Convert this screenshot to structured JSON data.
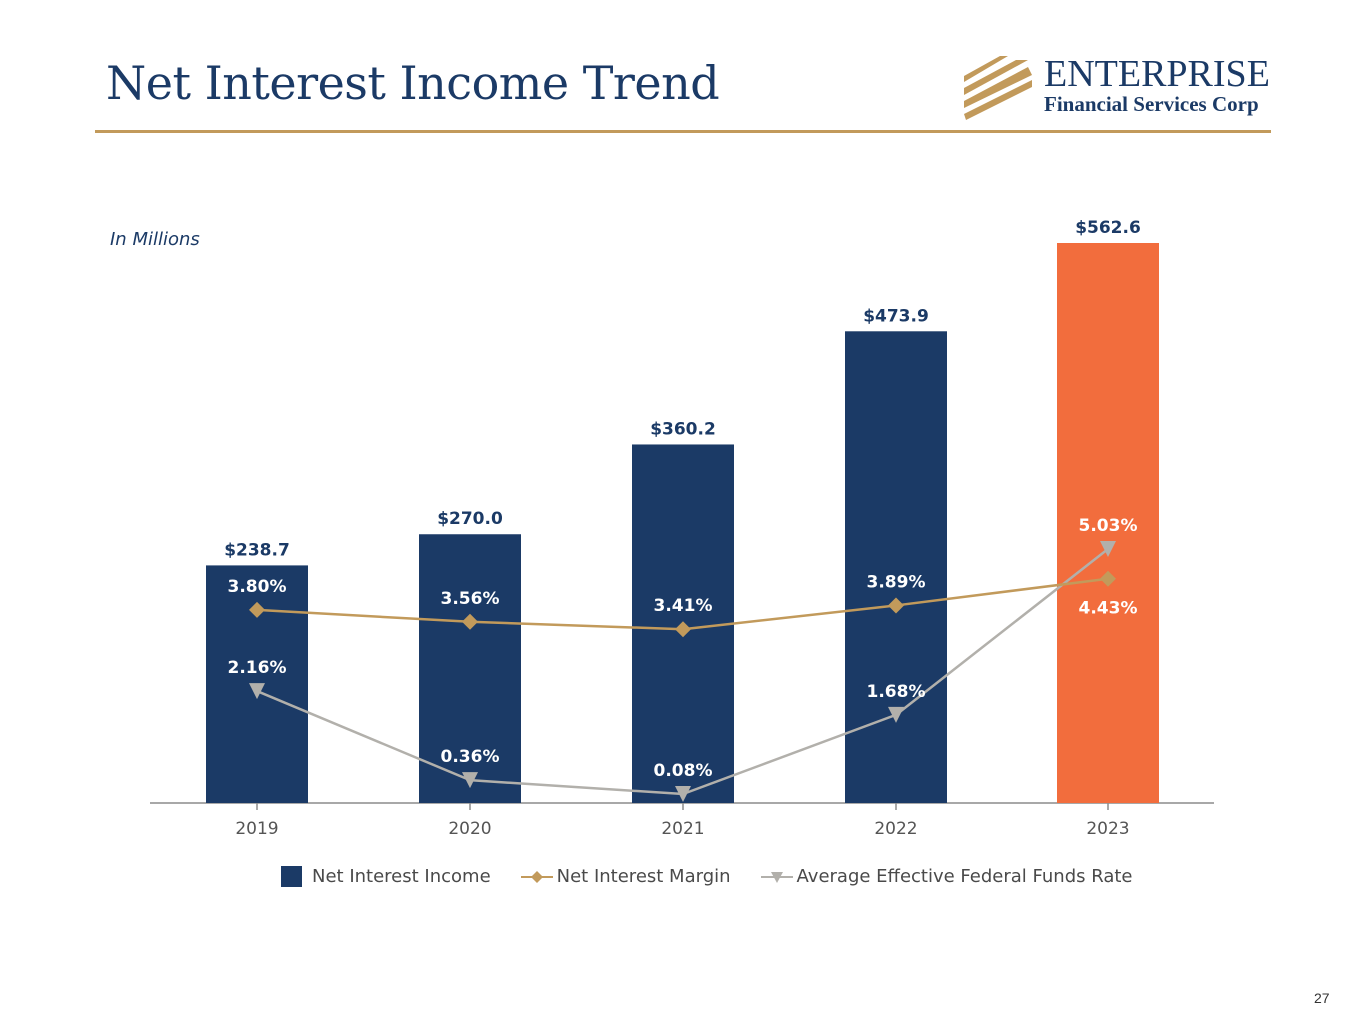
{
  "page": {
    "title": "Net Interest Income Trend",
    "units_note": "In Millions",
    "page_number": "27"
  },
  "logo": {
    "line1": "ENTERPRISE",
    "line2": "Financial Services Corp"
  },
  "colors": {
    "navy": "#1b3a66",
    "orange": "#f26d3d",
    "gold": "#c29a5b",
    "gray": "#b2b0ab",
    "axis": "#8c8c8c"
  },
  "chart_data": {
    "type": "bar",
    "title": "Net Interest Income Trend",
    "ylabel": "In Millions",
    "categories": [
      "2019",
      "2020",
      "2021",
      "2022",
      "2023"
    ],
    "series": [
      {
        "name": "Net Interest Income",
        "type": "bar",
        "values": [
          238.7,
          270.0,
          360.2,
          473.9,
          562.6
        ],
        "labels": [
          "$238.7",
          "$270.0",
          "$360.2",
          "$473.9",
          "$562.6"
        ],
        "highlight_last": true
      },
      {
        "name": "Net Interest Margin",
        "type": "line",
        "marker": "diamond",
        "values": [
          3.8,
          3.56,
          3.41,
          3.89,
          4.43
        ],
        "labels": [
          "3.80%",
          "3.56%",
          "3.41%",
          "3.89%",
          "4.43%"
        ]
      },
      {
        "name": "Average Effective Federal Funds Rate",
        "type": "line",
        "marker": "triangle-down",
        "values": [
          2.16,
          0.36,
          0.08,
          1.68,
          5.03
        ],
        "labels": [
          "2.16%",
          "0.36%",
          "0.08%",
          "1.68%",
          "5.03%"
        ]
      }
    ],
    "legend": [
      "Net Interest Income",
      "Net Interest Margin",
      "Average Effective Federal Funds Rate"
    ],
    "legend_position": "bottom"
  }
}
